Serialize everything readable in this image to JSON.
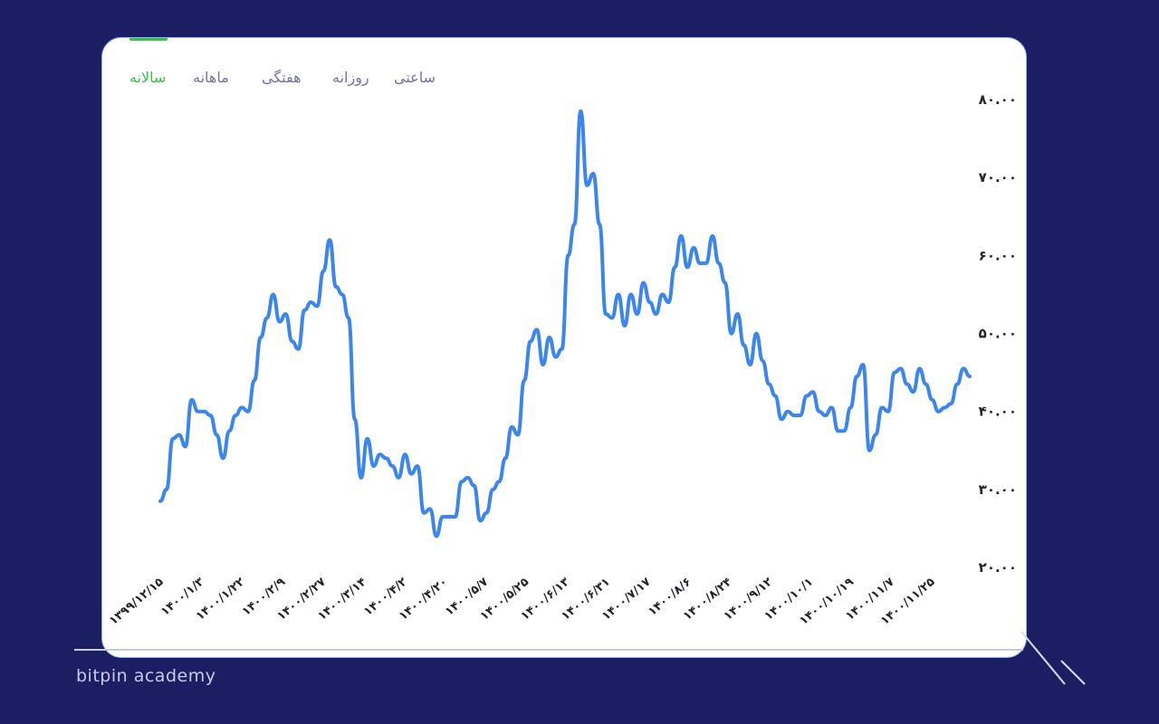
{
  "brand": "bitpin academy",
  "tabs": [
    {
      "label": "ساعتی",
      "active": false
    },
    {
      "label": "روزانه",
      "active": false
    },
    {
      "label": "هفتگی",
      "active": false
    },
    {
      "label": "ماهانه",
      "active": false
    },
    {
      "label": "سالانه",
      "active": true
    }
  ],
  "colors": {
    "background": "#1b1e63",
    "line": "#3a86ee",
    "active_tab": "#35c04a",
    "tab": "#7074a8"
  },
  "chart_data": {
    "type": "line",
    "ylim": [
      20,
      80
    ],
    "y_ticks": [
      "۲۰.۰۰",
      "۳۰.۰۰",
      "۴۰.۰۰",
      "۵۰.۰۰",
      "۶۰.۰۰",
      "۷۰.۰۰",
      "۸۰.۰۰"
    ],
    "y_tick_values": [
      20,
      30,
      40,
      50,
      60,
      70,
      80
    ],
    "x_ticks": [
      "۱۳۹۹/۱۲/۱۵",
      "۱۴۰۰/۱/۳",
      "۱۴۰۰/۱/۲۲",
      "۱۴۰۰/۲/۹",
      "۱۴۰۰/۲/۲۷",
      "۱۴۰۰/۳/۱۴",
      "۱۴۰۰/۴/۲",
      "۱۴۰۰/۴/۲۰",
      "۱۴۰۰/۵/۷",
      "۱۴۰۰/۵/۲۵",
      "۱۴۰۰/۶/۱۳",
      "۱۴۰۰/۶/۳۱",
      "۱۴۰۰/۷/۱۷",
      "۱۴۰۰/۸/۶",
      "۱۴۰۰/۸/۲۴",
      "۱۴۰۰/۹/۱۲",
      "۱۴۰۰/۱۰/۱",
      "۱۴۰۰/۱۰/۱۹",
      "۱۴۰۰/۱۱/۷",
      "۱۴۰۰/۱۱/۲۵"
    ],
    "values": [
      28.5,
      30,
      36.5,
      37,
      35.5,
      41.5,
      40,
      40,
      39.5,
      37,
      34,
      37.5,
      39.5,
      40.5,
      40,
      44,
      49.5,
      52,
      55,
      51.5,
      52.5,
      49,
      48,
      53,
      54,
      53.5,
      58,
      62,
      56,
      55,
      52,
      39,
      31.5,
      36.5,
      33,
      34.5,
      34,
      33,
      31.5,
      34.5,
      32,
      33,
      27,
      27.5,
      24,
      26.5,
      26.5,
      26.5,
      31,
      31.5,
      30.5,
      26,
      27,
      30,
      31,
      34,
      38,
      37,
      44,
      49,
      50.5,
      46,
      49.5,
      47,
      48,
      60,
      64,
      78.5,
      69,
      70.5,
      64,
      52.5,
      52,
      55,
      51,
      55,
      52.5,
      56.5,
      54,
      52.5,
      55,
      54,
      58.5,
      62.5,
      58.5,
      61,
      59,
      59,
      62.5,
      59,
      56.5,
      50,
      52.5,
      48.5,
      46,
      50,
      46.5,
      43.5,
      42,
      39,
      40,
      39.5,
      39.5,
      42,
      42.5,
      40,
      39.5,
      40.5,
      37.5,
      37.5,
      40.5,
      44.5,
      46,
      35,
      37,
      40.5,
      40,
      45,
      45.5,
      43.5,
      42.5,
      45.5,
      43.5,
      41.5,
      40,
      40.5,
      41,
      43.5,
      45.5,
      44.5
    ]
  }
}
